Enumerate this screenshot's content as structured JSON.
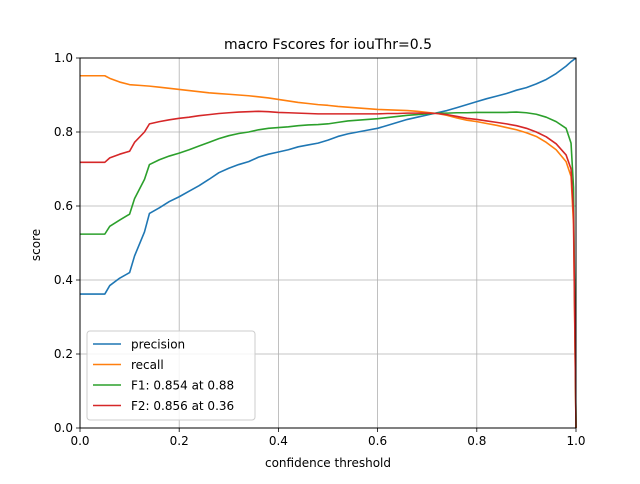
{
  "chart_data": {
    "type": "line",
    "title": "macro Fscores for iouThr=0.5",
    "xlabel": "confidence threshold",
    "ylabel": "score",
    "xlim": [
      0,
      1
    ],
    "ylim": [
      0,
      1
    ],
    "xticks": [
      0,
      0.2,
      0.4,
      0.6,
      0.8,
      1
    ],
    "yticks": [
      0,
      0.2,
      0.4,
      0.6,
      0.8,
      1
    ],
    "xtick_labels": [
      "0.0",
      "0.2",
      "0.4",
      "0.6",
      "0.8",
      "1.0"
    ],
    "ytick_labels": [
      "0.0",
      "0.2",
      "0.4",
      "0.6",
      "0.8",
      "1.0"
    ],
    "grid": true,
    "legend_position": "bottom-left",
    "series": [
      {
        "name": "precision",
        "color": "#1f77b4",
        "points": [
          [
            0,
            0.362
          ],
          [
            0.05,
            0.362
          ],
          [
            0.06,
            0.385
          ],
          [
            0.08,
            0.405
          ],
          [
            0.1,
            0.42
          ],
          [
            0.11,
            0.465
          ],
          [
            0.13,
            0.53
          ],
          [
            0.14,
            0.58
          ],
          [
            0.16,
            0.595
          ],
          [
            0.18,
            0.612
          ],
          [
            0.2,
            0.625
          ],
          [
            0.22,
            0.64
          ],
          [
            0.24,
            0.655
          ],
          [
            0.26,
            0.672
          ],
          [
            0.28,
            0.69
          ],
          [
            0.3,
            0.702
          ],
          [
            0.32,
            0.712
          ],
          [
            0.34,
            0.72
          ],
          [
            0.36,
            0.732
          ],
          [
            0.38,
            0.74
          ],
          [
            0.4,
            0.746
          ],
          [
            0.42,
            0.752
          ],
          [
            0.44,
            0.76
          ],
          [
            0.46,
            0.765
          ],
          [
            0.48,
            0.77
          ],
          [
            0.5,
            0.778
          ],
          [
            0.52,
            0.788
          ],
          [
            0.54,
            0.795
          ],
          [
            0.56,
            0.8
          ],
          [
            0.58,
            0.805
          ],
          [
            0.6,
            0.81
          ],
          [
            0.62,
            0.818
          ],
          [
            0.64,
            0.826
          ],
          [
            0.66,
            0.834
          ],
          [
            0.68,
            0.84
          ],
          [
            0.7,
            0.846
          ],
          [
            0.72,
            0.852
          ],
          [
            0.74,
            0.858
          ],
          [
            0.76,
            0.866
          ],
          [
            0.78,
            0.874
          ],
          [
            0.8,
            0.882
          ],
          [
            0.82,
            0.89
          ],
          [
            0.84,
            0.897
          ],
          [
            0.86,
            0.904
          ],
          [
            0.88,
            0.913
          ],
          [
            0.9,
            0.92
          ],
          [
            0.92,
            0.93
          ],
          [
            0.94,
            0.942
          ],
          [
            0.96,
            0.958
          ],
          [
            0.98,
            0.978
          ],
          [
            0.99,
            0.99
          ],
          [
            1.0,
            1.0
          ]
        ]
      },
      {
        "name": "recall",
        "color": "#ff7f0e",
        "points": [
          [
            0,
            0.952
          ],
          [
            0.05,
            0.952
          ],
          [
            0.06,
            0.945
          ],
          [
            0.08,
            0.935
          ],
          [
            0.1,
            0.928
          ],
          [
            0.12,
            0.926
          ],
          [
            0.14,
            0.924
          ],
          [
            0.16,
            0.921
          ],
          [
            0.18,
            0.918
          ],
          [
            0.2,
            0.915
          ],
          [
            0.22,
            0.912
          ],
          [
            0.24,
            0.909
          ],
          [
            0.26,
            0.906
          ],
          [
            0.28,
            0.904
          ],
          [
            0.3,
            0.902
          ],
          [
            0.32,
            0.9
          ],
          [
            0.34,
            0.898
          ],
          [
            0.36,
            0.895
          ],
          [
            0.38,
            0.892
          ],
          [
            0.4,
            0.888
          ],
          [
            0.42,
            0.884
          ],
          [
            0.44,
            0.88
          ],
          [
            0.46,
            0.877
          ],
          [
            0.48,
            0.874
          ],
          [
            0.5,
            0.872
          ],
          [
            0.52,
            0.869
          ],
          [
            0.54,
            0.867
          ],
          [
            0.56,
            0.865
          ],
          [
            0.58,
            0.863
          ],
          [
            0.6,
            0.861
          ],
          [
            0.62,
            0.86
          ],
          [
            0.64,
            0.859
          ],
          [
            0.66,
            0.858
          ],
          [
            0.68,
            0.856
          ],
          [
            0.7,
            0.853
          ],
          [
            0.72,
            0.85
          ],
          [
            0.74,
            0.845
          ],
          [
            0.76,
            0.838
          ],
          [
            0.78,
            0.832
          ],
          [
            0.8,
            0.828
          ],
          [
            0.82,
            0.823
          ],
          [
            0.84,
            0.818
          ],
          [
            0.86,
            0.812
          ],
          [
            0.88,
            0.806
          ],
          [
            0.9,
            0.798
          ],
          [
            0.92,
            0.788
          ],
          [
            0.94,
            0.772
          ],
          [
            0.96,
            0.752
          ],
          [
            0.98,
            0.72
          ],
          [
            0.99,
            0.68
          ],
          [
            0.995,
            0.55
          ],
          [
            1.0,
            0.0
          ]
        ]
      },
      {
        "name": "F1: 0.854 at 0.88",
        "color": "#2ca02c",
        "points": [
          [
            0,
            0.524
          ],
          [
            0.05,
            0.524
          ],
          [
            0.06,
            0.545
          ],
          [
            0.08,
            0.562
          ],
          [
            0.1,
            0.578
          ],
          [
            0.11,
            0.62
          ],
          [
            0.13,
            0.672
          ],
          [
            0.14,
            0.712
          ],
          [
            0.16,
            0.725
          ],
          [
            0.18,
            0.735
          ],
          [
            0.2,
            0.743
          ],
          [
            0.22,
            0.752
          ],
          [
            0.24,
            0.762
          ],
          [
            0.26,
            0.772
          ],
          [
            0.28,
            0.782
          ],
          [
            0.3,
            0.79
          ],
          [
            0.32,
            0.796
          ],
          [
            0.34,
            0.8
          ],
          [
            0.36,
            0.806
          ],
          [
            0.38,
            0.81
          ],
          [
            0.4,
            0.812
          ],
          [
            0.42,
            0.814
          ],
          [
            0.44,
            0.817
          ],
          [
            0.46,
            0.819
          ],
          [
            0.48,
            0.82
          ],
          [
            0.5,
            0.822
          ],
          [
            0.52,
            0.826
          ],
          [
            0.54,
            0.83
          ],
          [
            0.56,
            0.832
          ],
          [
            0.58,
            0.834
          ],
          [
            0.6,
            0.836
          ],
          [
            0.62,
            0.839
          ],
          [
            0.64,
            0.842
          ],
          [
            0.66,
            0.845
          ],
          [
            0.68,
            0.847
          ],
          [
            0.7,
            0.849
          ],
          [
            0.72,
            0.851
          ],
          [
            0.74,
            0.851
          ],
          [
            0.76,
            0.852
          ],
          [
            0.78,
            0.852
          ],
          [
            0.8,
            0.853
          ],
          [
            0.82,
            0.853
          ],
          [
            0.84,
            0.853
          ],
          [
            0.86,
            0.853
          ],
          [
            0.88,
            0.854
          ],
          [
            0.9,
            0.852
          ],
          [
            0.92,
            0.848
          ],
          [
            0.94,
            0.84
          ],
          [
            0.96,
            0.828
          ],
          [
            0.98,
            0.81
          ],
          [
            0.99,
            0.77
          ],
          [
            0.995,
            0.65
          ],
          [
            1.0,
            0.0
          ]
        ]
      },
      {
        "name": "F2: 0.856 at 0.36",
        "color": "#d62728",
        "points": [
          [
            0,
            0.718
          ],
          [
            0.05,
            0.718
          ],
          [
            0.06,
            0.73
          ],
          [
            0.08,
            0.74
          ],
          [
            0.1,
            0.748
          ],
          [
            0.11,
            0.772
          ],
          [
            0.13,
            0.8
          ],
          [
            0.14,
            0.822
          ],
          [
            0.16,
            0.828
          ],
          [
            0.18,
            0.833
          ],
          [
            0.2,
            0.837
          ],
          [
            0.22,
            0.84
          ],
          [
            0.24,
            0.844
          ],
          [
            0.26,
            0.847
          ],
          [
            0.28,
            0.85
          ],
          [
            0.3,
            0.852
          ],
          [
            0.32,
            0.854
          ],
          [
            0.34,
            0.855
          ],
          [
            0.36,
            0.856
          ],
          [
            0.38,
            0.855
          ],
          [
            0.4,
            0.853
          ],
          [
            0.42,
            0.852
          ],
          [
            0.44,
            0.851
          ],
          [
            0.46,
            0.85
          ],
          [
            0.48,
            0.849
          ],
          [
            0.5,
            0.849
          ],
          [
            0.52,
            0.849
          ],
          [
            0.54,
            0.849
          ],
          [
            0.56,
            0.849
          ],
          [
            0.58,
            0.849
          ],
          [
            0.6,
            0.849
          ],
          [
            0.62,
            0.85
          ],
          [
            0.64,
            0.85
          ],
          [
            0.66,
            0.851
          ],
          [
            0.68,
            0.851
          ],
          [
            0.7,
            0.851
          ],
          [
            0.72,
            0.85
          ],
          [
            0.74,
            0.847
          ],
          [
            0.76,
            0.842
          ],
          [
            0.78,
            0.837
          ],
          [
            0.8,
            0.834
          ],
          [
            0.82,
            0.83
          ],
          [
            0.84,
            0.826
          ],
          [
            0.86,
            0.822
          ],
          [
            0.88,
            0.817
          ],
          [
            0.9,
            0.81
          ],
          [
            0.92,
            0.8
          ],
          [
            0.94,
            0.787
          ],
          [
            0.96,
            0.768
          ],
          [
            0.98,
            0.738
          ],
          [
            0.99,
            0.7
          ],
          [
            0.995,
            0.58
          ],
          [
            1.0,
            0.0
          ]
        ]
      }
    ]
  }
}
